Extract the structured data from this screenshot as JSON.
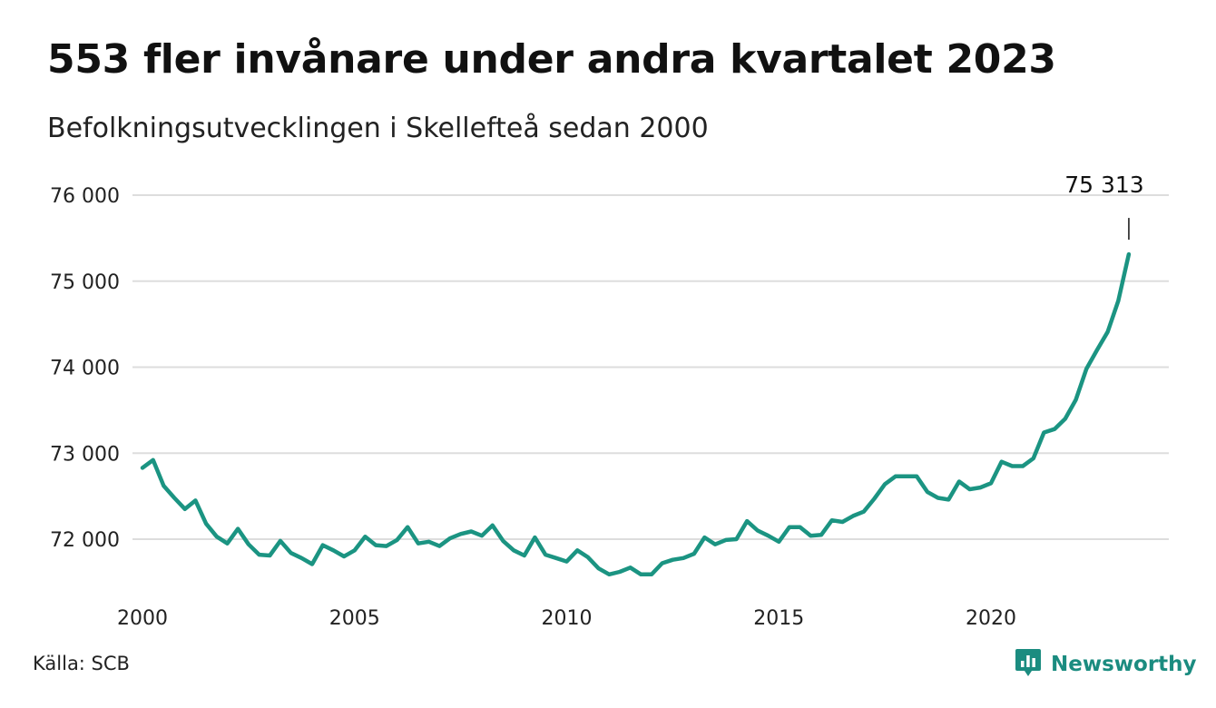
{
  "title": "553 fler invånare under andra kvartalet 2023",
  "subtitle": "Befolkningsutvecklingen i Skellefteå sedan 2000",
  "source": "Källa: SCB",
  "brand": {
    "name": "Newsworthy",
    "icon": "newsworthy-logo-icon",
    "color": "#1b8c80"
  },
  "colors": {
    "line": "#1b9482",
    "grid": "#dddddd",
    "text": "#222222"
  },
  "chart_data": {
    "type": "line",
    "title": "553 fler invånare under andra kvartalet 2023",
    "subtitle": "Befolkningsutvecklingen i Skellefteå sedan 2000",
    "xlabel": "",
    "ylabel": "",
    "xlim": [
      2000,
      2024.1
    ],
    "ylim": [
      71400,
      76200
    ],
    "yticks": [
      72000,
      73000,
      74000,
      75000,
      76000
    ],
    "ytick_labels": [
      "72 000",
      "73 000",
      "74 000",
      "75 000",
      "76 000"
    ],
    "xticks": [
      2000,
      2005,
      2010,
      2015,
      2020
    ],
    "xtick_labels": [
      "2000",
      "2005",
      "2010",
      "2015",
      "2020"
    ],
    "grid": true,
    "legend": "none",
    "annotation": {
      "label": "75 313",
      "x": 2023.25,
      "y": 75313
    },
    "series": [
      {
        "x": [
          2000.0,
          2000.25,
          2000.5,
          2000.75,
          2001.0,
          2001.25,
          2001.5,
          2001.75,
          2002.0,
          2002.25,
          2002.5,
          2002.75,
          2003.0,
          2003.25,
          2003.5,
          2003.75,
          2004.0,
          2004.25,
          2004.5,
          2004.75,
          2005.0,
          2005.25,
          2005.5,
          2005.75,
          2006.0,
          2006.25,
          2006.5,
          2006.75,
          2007.0,
          2007.25,
          2007.5,
          2007.75,
          2008.0,
          2008.25,
          2008.5,
          2008.75,
          2009.0,
          2009.25,
          2009.5,
          2009.75,
          2010.0,
          2010.25,
          2010.5,
          2010.75,
          2011.0,
          2011.25,
          2011.5,
          2011.75,
          2012.0,
          2012.25,
          2012.5,
          2012.75,
          2013.0,
          2013.25,
          2013.5,
          2013.75,
          2014.0,
          2014.25,
          2014.5,
          2014.75,
          2015.0,
          2015.25,
          2015.5,
          2015.75,
          2016.0,
          2016.25,
          2016.5,
          2016.75,
          2017.0,
          2017.25,
          2017.5,
          2017.75,
          2018.0,
          2018.25,
          2018.5,
          2018.75,
          2019.0,
          2019.25,
          2019.5,
          2019.75,
          2020.0,
          2020.25,
          2020.5,
          2020.75,
          2021.0,
          2021.25,
          2021.5,
          2021.75,
          2022.0,
          2022.25,
          2022.5,
          2022.75,
          2023.0,
          2023.25
        ],
        "values": [
          72830,
          72920,
          72620,
          72480,
          72350,
          72450,
          72180,
          72030,
          71950,
          72120,
          71940,
          71820,
          71810,
          71980,
          71840,
          71780,
          71710,
          71930,
          71870,
          71800,
          71870,
          72030,
          71930,
          71920,
          71990,
          72140,
          71950,
          71970,
          71920,
          72010,
          72060,
          72090,
          72040,
          72160,
          71980,
          71870,
          71810,
          72020,
          71820,
          71780,
          71740,
          71870,
          71790,
          71660,
          71590,
          71620,
          71670,
          71590,
          71590,
          71720,
          71760,
          71780,
          71830,
          72020,
          71940,
          71990,
          72000,
          72210,
          72100,
          72040,
          71970,
          72140,
          72140,
          72040,
          72050,
          72220,
          72200,
          72270,
          72320,
          72470,
          72640,
          72730,
          72730,
          72730,
          72550,
          72480,
          72460,
          72670,
          72580,
          72600,
          72650,
          72900,
          72850,
          72850,
          72940,
          73240,
          73280,
          73400,
          73620,
          73980,
          74200,
          74410,
          74770,
          75313
        ]
      }
    ]
  }
}
